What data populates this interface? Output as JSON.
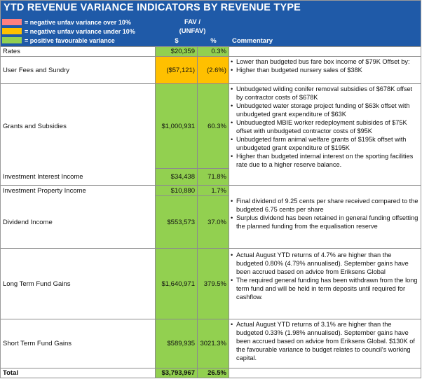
{
  "title": "YTD REVENUE VARIANCE INDICATORS BY REVENUE TYPE",
  "legend": [
    {
      "label": "= negative unfav variance over 10%",
      "color": "#ff8080"
    },
    {
      "label": "= negative unfav variance under 10%",
      "color": "#ffc000"
    },
    {
      "label": "= positive favourable variance",
      "color": "#92d050"
    }
  ],
  "header": {
    "fav_line1": "FAV /",
    "fav_line2": "(UNFAV)",
    "dollar": "$",
    "pct": "%",
    "commentary": "Commentary"
  },
  "colors": {
    "title_bg": "#1f5aa8",
    "positive": "#92d050",
    "unfav_under": "#ffc000",
    "unfav_over": "#ff8080"
  },
  "rows": {
    "rates": {
      "label": "Rates",
      "dollar": "$20,359",
      "pct": "0.3%",
      "status": "positive"
    },
    "user_fees": {
      "label": "User Fees and Sundry",
      "dollar": "($57,121)",
      "pct": "(2.6%)",
      "status": "unfav_under",
      "comments": [
        "Lower than budgeted bus fare box income of $79K Offset by:",
        "Higher than budgeted nursery sales of $38K"
      ]
    },
    "grants": {
      "label": "Grants and Subsidies",
      "dollar": "$1,000,931",
      "pct": "60.3%",
      "status": "positive",
      "comments": [
        "Unbudgeted wilding conifer removal subsidies of $678K offset by contractor costs of $678K",
        "Unbudgeted water storage project funding of $63k offset with unbudgeted grant expenditure of $63K",
        "Unbuduegted MBIE worker redeployment subisides of $75K offset with unbudgeted contractor costs of $95K",
        "Unbudgeted farm animal welfare grants of $195k offset with unbudgeted grant expenditure of $195K"
      ]
    },
    "investment_interest": {
      "label": "Investment Interest Income",
      "dollar": "$34,438",
      "pct": "71.8%",
      "status": "positive",
      "comments": [
        "Higher than budgeted internal interest on the sporting facilities rate due to a higher reserve balance."
      ]
    },
    "investment_property": {
      "label": "Investment Property Income",
      "dollar": "$10,880",
      "pct": "1.7%",
      "status": "positive"
    },
    "dividend": {
      "label": "Dividend Income",
      "dollar": "$553,573",
      "pct": "37.0%",
      "status": "positive",
      "comments": [
        "Final dividend of 9.25 cents per share received compared to the budgeted 6.75 cents per share",
        "Surplus dividend has been retained in general funding offsetting the planned funding from the equalisation reserve"
      ]
    },
    "long_term": {
      "label": "Long Term Fund Gains",
      "dollar": "$1,640,971",
      "pct": "379.5%",
      "status": "positive",
      "comments": [
        "Actual August YTD returns of 4.7% are higher than the budgeted 0.80% (4.79% annualised). September gains have been accrued based on advice from Eriksens Global",
        "The required general funding has been withdrawn from the long term fund and will be held in term deposits until required for cashflow."
      ]
    },
    "short_term": {
      "label": "Short Term Fund Gains",
      "dollar": "$589,935",
      "pct": "3021.3%",
      "status": "positive",
      "comments": [
        "Actual August YTD returns of 3.1% are higher than the budgeted 0.33% (1.98% annualised). September gains have been accrued based on advice from Eriksens Global. $130K of the favourable variance to budget relates to council's working capital."
      ]
    },
    "total": {
      "label": "Total",
      "dollar": "$3,793,967",
      "pct": "26.5%",
      "status": "positive"
    }
  }
}
